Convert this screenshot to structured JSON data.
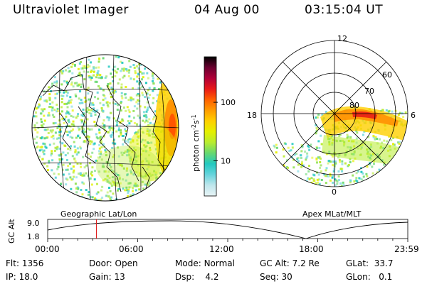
{
  "header": {
    "instrument": "Ultraviolet Imager",
    "date": "04 Aug 00",
    "time": "03:15:04 UT"
  },
  "colorbar": {
    "label": "photon cm",
    "exp1": "-2",
    "label_s": "s",
    "exp2": "-1",
    "ticks": [
      {
        "value": 100,
        "label": "100"
      },
      {
        "value": 10,
        "label": "10"
      }
    ],
    "colors": [
      "#e8f4f6",
      "#bfe6ec",
      "#66d4dc",
      "#22c8c0",
      "#66d870",
      "#b8ec30",
      "#e4f000",
      "#ffd000",
      "#ff9c00",
      "#ff6000",
      "#e81818",
      "#b00038",
      "#6a0030",
      "#000000"
    ]
  },
  "geo_panel": {
    "caption": "Geographic Lat/Lon"
  },
  "polar_panel": {
    "caption": "Apex MLat/MLT",
    "mlt_labels": [
      "12",
      "18",
      "6",
      "0"
    ],
    "lat_labels": [
      "60",
      "70",
      "80"
    ]
  },
  "timeline": {
    "axis_label": "GC Alt",
    "y_ticks": [
      "9.0",
      "1.8"
    ],
    "x_ticks": [
      "00:00",
      "06:00",
      "12:00",
      "18:00",
      "23:59"
    ],
    "marker_time": "03:15"
  },
  "info": {
    "row1": {
      "flt_label": "Flt:",
      "flt_value": "1356",
      "door_label": "Door:",
      "door_value": "Open",
      "mode_label": "Mode:",
      "mode_value": "Normal",
      "alt_label": "GC Alt:",
      "alt_value": "7.2 Re",
      "glat_label": "GLat:",
      "glat_value": "33.7"
    },
    "row2": {
      "ip_label": "IP:",
      "ip_value": "18.0",
      "gain_label": "Gain:",
      "gain_value": "13",
      "dsp_label": "Dsp:",
      "dsp_value": "4.2",
      "seq_label": "Seq:",
      "seq_value": "30",
      "glon_label": "GLon:",
      "glon_value": "0.1"
    }
  }
}
